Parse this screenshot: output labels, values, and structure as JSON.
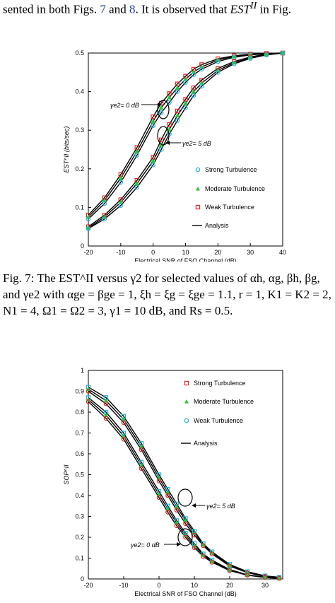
{
  "intro_text": {
    "before": "sented in both Figs. ",
    "link1": "7",
    "mid": " and ",
    "link2": "8",
    "after": ".  It is observed that ",
    "math": "EST",
    "sup": "II",
    "end": " in Fig."
  },
  "caption": {
    "label": "Fig. 7:",
    "text": " The EST^II versus γ2 for selected values of αh, αg, βh, βg, and γe2 with αge = βge = 1, ξh = ξg = ξge = 1.1, r = 1, K1 = K2 = 2, N1 = 4, Ω1 = Ω2 = 3, γ1 = 10 dB, and Rs = 0.5."
  },
  "colors": {
    "strong": "#29b6d6",
    "moderate": "#2fbf3a",
    "weak": "#d42a2a",
    "analysis": "#000000"
  },
  "chart_data": [
    {
      "type": "line",
      "xlabel": "Electrical SNR of  FSO Channel (dB)",
      "ylabel": "EST^II (bits/sec)",
      "xlim": [
        -20,
        40
      ],
      "ylim": [
        0,
        0.5
      ],
      "xticks": [
        -20,
        -10,
        0,
        10,
        20,
        30,
        40
      ],
      "yticks": [
        0,
        0.1,
        0.2,
        0.3,
        0.4,
        0.5
      ],
      "ytick_labels": [
        "0",
        "0.1",
        "0.2",
        "0.3",
        "0.4",
        "0.5"
      ],
      "legend": [
        "Strong Turbulence",
        "Moderate Turbulence",
        "Weak Turbulence",
        "Analysis"
      ],
      "annotations": [
        {
          "text": "γe2= 0 dB",
          "x": 0,
          "y": 0.385
        },
        {
          "text": "γe2= 5 dB",
          "x": 5,
          "y": 0.27
        }
      ],
      "x": [
        -20,
        -15,
        -10,
        -5,
        0,
        2.5,
        5,
        7.5,
        10,
        12.5,
        15,
        20,
        25,
        30,
        35,
        40
      ],
      "series": [
        {
          "name": "Weak Turbulence",
          "group": "0 dB",
          "marker": "square",
          "values": [
            0.08,
            0.125,
            0.185,
            0.255,
            0.335,
            0.37,
            0.395,
            0.42,
            0.44,
            0.458,
            0.47,
            0.485,
            0.493,
            0.497,
            0.499,
            0.5
          ]
        },
        {
          "name": "Moderate Turbulence",
          "group": "0 dB",
          "marker": "triangle",
          "values": [
            0.075,
            0.118,
            0.176,
            0.245,
            0.323,
            0.358,
            0.385,
            0.41,
            0.432,
            0.451,
            0.464,
            0.482,
            0.491,
            0.496,
            0.498,
            0.5
          ]
        },
        {
          "name": "Strong Turbulence",
          "group": "0 dB",
          "marker": "circle",
          "values": [
            0.07,
            0.11,
            0.165,
            0.235,
            0.312,
            0.345,
            0.372,
            0.4,
            0.424,
            0.444,
            0.458,
            0.478,
            0.489,
            0.495,
            0.498,
            0.5
          ]
        },
        {
          "name": "Weak Turbulence",
          "group": "5 dB",
          "marker": "square",
          "values": [
            0.05,
            0.08,
            0.12,
            0.17,
            0.23,
            0.275,
            0.315,
            0.35,
            0.38,
            0.41,
            0.43,
            0.46,
            0.478,
            0.49,
            0.497,
            0.5
          ]
        },
        {
          "name": "Moderate Turbulence",
          "group": "5 dB",
          "marker": "triangle",
          "values": [
            0.047,
            0.075,
            0.113,
            0.162,
            0.22,
            0.262,
            0.302,
            0.338,
            0.37,
            0.4,
            0.422,
            0.455,
            0.475,
            0.488,
            0.496,
            0.5
          ]
        },
        {
          "name": "Strong Turbulence",
          "group": "5 dB",
          "marker": "circle",
          "values": [
            0.045,
            0.07,
            0.105,
            0.152,
            0.21,
            0.25,
            0.29,
            0.325,
            0.358,
            0.39,
            0.414,
            0.45,
            0.472,
            0.486,
            0.495,
            0.5
          ]
        }
      ]
    },
    {
      "type": "line",
      "xlabel": "Electrical SNR of FSO Channel (dB)",
      "ylabel": "SOP^II",
      "xlim": [
        -20,
        35
      ],
      "ylim": [
        0,
        1
      ],
      "xticks": [
        -20,
        -10,
        0,
        10,
        20,
        30
      ],
      "yticks": [
        0,
        0.1,
        0.2,
        0.3,
        0.4,
        0.5,
        0.6,
        0.7,
        0.8,
        0.9,
        1
      ],
      "ytick_labels": [
        "0",
        "0.1",
        "0.2",
        "0.3",
        "0.4",
        "0.5",
        "0.6",
        "0.7",
        "0.8",
        "0.9",
        "1"
      ],
      "legend": [
        "Strong Turbulence",
        "Moderate Turbulence",
        "Weak Turbulence",
        "Analysis"
      ],
      "annotations": [
        {
          "text": "γe2= 5 dB",
          "x": 14,
          "y": 0.33
        },
        {
          "text": "γe2= 0 dB",
          "x": -8,
          "y": 0.185
        }
      ],
      "x": [
        -20,
        -15,
        -10,
        -5,
        0,
        2.5,
        5,
        7.5,
        10,
        12.5,
        15,
        20,
        25,
        30,
        34
      ],
      "series": [
        {
          "name": "Strong Turbulence",
          "group": "5 dB",
          "marker": "square",
          "values": [
            0.92,
            0.87,
            0.78,
            0.65,
            0.5,
            0.43,
            0.36,
            0.29,
            0.23,
            0.17,
            0.13,
            0.07,
            0.035,
            0.015,
            0.008
          ]
        },
        {
          "name": "Moderate Turbulence",
          "group": "5 dB",
          "marker": "triangle",
          "values": [
            0.91,
            0.855,
            0.765,
            0.635,
            0.485,
            0.415,
            0.345,
            0.28,
            0.22,
            0.165,
            0.125,
            0.065,
            0.032,
            0.013,
            0.007
          ]
        },
        {
          "name": "Weak Turbulence",
          "group": "5 dB",
          "marker": "circle",
          "values": [
            0.9,
            0.84,
            0.75,
            0.62,
            0.47,
            0.4,
            0.33,
            0.265,
            0.21,
            0.16,
            0.12,
            0.062,
            0.03,
            0.012,
            0.006
          ]
        },
        {
          "name": "Strong Turbulence",
          "group": "0 dB",
          "marker": "square",
          "values": [
            0.87,
            0.8,
            0.7,
            0.56,
            0.42,
            0.35,
            0.28,
            0.22,
            0.17,
            0.12,
            0.09,
            0.045,
            0.02,
            0.008,
            0.004
          ]
        },
        {
          "name": "Moderate Turbulence",
          "group": "0 dB",
          "marker": "triangle",
          "values": [
            0.86,
            0.785,
            0.685,
            0.545,
            0.405,
            0.335,
            0.268,
            0.21,
            0.16,
            0.115,
            0.085,
            0.042,
            0.019,
            0.007,
            0.003
          ]
        },
        {
          "name": "Weak Turbulence",
          "group": "0 dB",
          "marker": "circle",
          "values": [
            0.85,
            0.77,
            0.67,
            0.53,
            0.39,
            0.32,
            0.255,
            0.2,
            0.15,
            0.108,
            0.08,
            0.04,
            0.018,
            0.007,
            0.003
          ]
        }
      ]
    }
  ]
}
